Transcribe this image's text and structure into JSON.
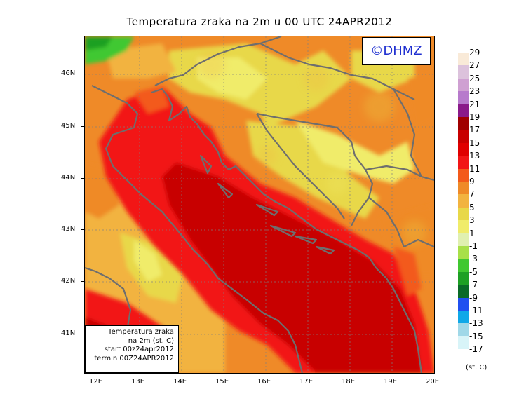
{
  "title": "Temperatura zraka na 2m u 00 UTC 24APR2012",
  "logo_text": "©DHMZ",
  "info_box": {
    "line1": "Temperatura zraka",
    "line2": "na 2m (st. C)",
    "line3": "start 00z24apr2012",
    "line4": "termin 00Z24APR2012"
  },
  "lat_labels": [
    "46N",
    "45N",
    "44N",
    "43N",
    "42N",
    "41N"
  ],
  "lon_labels": [
    "12E",
    "13E",
    "14E",
    "15E",
    "16E",
    "17E",
    "18E",
    "19E",
    "20E"
  ],
  "legend": {
    "unit": "(st. C)",
    "labels": [
      "29",
      "27",
      "25",
      "23",
      "21",
      "19",
      "17",
      "15",
      "13",
      "11",
      "9",
      "7",
      "5",
      "3",
      "1",
      "-1",
      "-3",
      "-5",
      "-7",
      "-9",
      "-11",
      "-13",
      "-15",
      "-17"
    ],
    "colors": [
      "#f9ead8",
      "#dcc2dc",
      "#cfa0d2",
      "#b77acc",
      "#8a1a8a",
      "#a00000",
      "#c80000",
      "#e00000",
      "#f21616",
      "#f35a1a",
      "#ef8a28",
      "#f2b340",
      "#e8d848",
      "#f0ec6a",
      "#e0f0b0",
      "#a8e048",
      "#40c830",
      "#1ea024",
      "#0a6a28",
      "#2050f0",
      "#10a8e8",
      "#a0d8e8",
      "#d8f4f8",
      "#ffffff"
    ]
  }
}
